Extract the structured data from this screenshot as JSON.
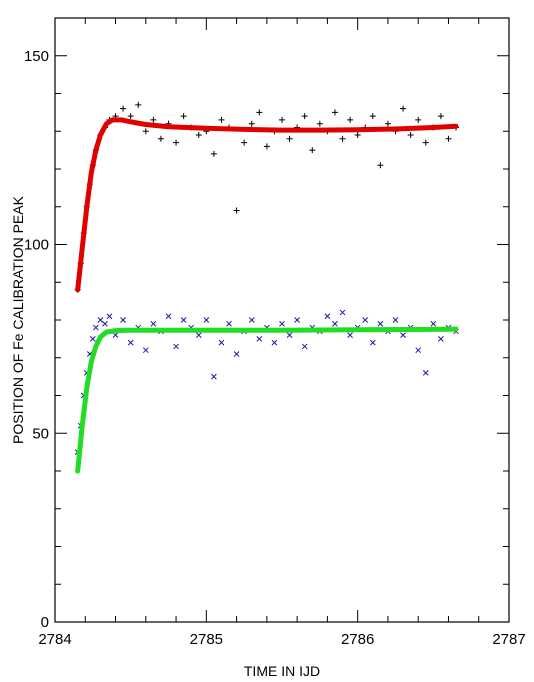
{
  "chart_data": {
    "type": "scatter",
    "xlabel": "TIME IN IJD",
    "ylabel": "POSITION OF Fe CALIBRATION PEAK",
    "xlim": [
      2784,
      2787
    ],
    "ylim": [
      0,
      160
    ],
    "x_ticks": [
      2784,
      2785,
      2786,
      2787
    ],
    "x_tick_labels": [
      "2784",
      "2785",
      "2786",
      "2787"
    ],
    "y_ticks": [
      0,
      50,
      100,
      150
    ],
    "y_tick_labels": [
      "0",
      "50",
      "100",
      "150"
    ],
    "grid": false,
    "legend": "none",
    "colors": {
      "upper_points": "#000000",
      "upper_fit": "#e00000",
      "lower_points": "#1a1aa8",
      "lower_fit": "#22dd22"
    },
    "series": [
      {
        "marker": "+",
        "color": "#000000",
        "description_range": "rises from about 88 at t=2784.15 to about 131 by t=2784.45, then scatters between roughly 110 and 140",
        "x": [
          2784.15,
          2784.17,
          2784.19,
          2784.21,
          2784.23,
          2784.25,
          2784.27,
          2784.3,
          2784.33,
          2784.36,
          2784.4,
          2784.45,
          2784.5,
          2784.55,
          2784.6,
          2784.65,
          2784.7,
          2784.75,
          2784.8,
          2784.85,
          2784.9,
          2784.95,
          2785.0,
          2785.05,
          2785.1,
          2785.15,
          2785.2,
          2785.25,
          2785.3,
          2785.35,
          2785.4,
          2785.45,
          2785.5,
          2785.55,
          2785.6,
          2785.65,
          2785.7,
          2785.75,
          2785.8,
          2785.85,
          2785.9,
          2785.95,
          2786.0,
          2786.05,
          2786.1,
          2786.15,
          2786.2,
          2786.25,
          2786.3,
          2786.35,
          2786.4,
          2786.45,
          2786.5,
          2786.55,
          2786.6,
          2786.65
        ],
        "y": [
          88,
          95,
          103,
          110,
          116,
          121,
          125,
          129,
          131,
          133,
          134,
          136,
          134,
          137,
          130,
          133,
          128,
          132,
          127,
          134,
          131,
          129,
          130,
          124,
          133,
          131,
          109,
          127,
          132,
          135,
          126,
          130,
          133,
          128,
          131,
          134,
          125,
          132,
          130,
          135,
          128,
          133,
          129,
          131,
          134,
          121,
          132,
          130,
          136,
          129,
          133,
          127,
          131,
          134,
          128,
          131
        ]
      },
      {
        "marker": "line",
        "color": "#e00000",
        "x": [
          2784.15,
          2784.18,
          2784.21,
          2784.24,
          2784.27,
          2784.3,
          2784.34,
          2784.38,
          2784.44,
          2784.5,
          2784.6,
          2784.75,
          2785.0,
          2785.25,
          2785.5,
          2785.75,
          2786.0,
          2786.25,
          2786.5,
          2786.65
        ],
        "y": [
          88,
          99,
          110,
          119,
          125,
          129,
          132,
          133,
          133,
          132.5,
          131.8,
          131.2,
          130.8,
          130.5,
          130.3,
          130.3,
          130.4,
          130.6,
          131,
          131.3
        ]
      },
      {
        "marker": "x",
        "color": "#1a1aa8",
        "x": [
          2784.15,
          2784.17,
          2784.19,
          2784.21,
          2784.23,
          2784.25,
          2784.27,
          2784.3,
          2784.33,
          2784.36,
          2784.4,
          2784.45,
          2784.5,
          2784.55,
          2784.6,
          2784.65,
          2784.7,
          2784.75,
          2784.8,
          2784.85,
          2784.9,
          2784.95,
          2785.0,
          2785.05,
          2785.1,
          2785.15,
          2785.2,
          2785.25,
          2785.3,
          2785.35,
          2785.4,
          2785.45,
          2785.5,
          2785.55,
          2785.6,
          2785.65,
          2785.7,
          2785.75,
          2785.8,
          2785.85,
          2785.9,
          2785.95,
          2786.0,
          2786.05,
          2786.1,
          2786.15,
          2786.2,
          2786.25,
          2786.3,
          2786.35,
          2786.4,
          2786.45,
          2786.5,
          2786.55,
          2786.6,
          2786.65
        ],
        "y": [
          45,
          52,
          60,
          66,
          71,
          75,
          78,
          80,
          79,
          81,
          76,
          80,
          74,
          78,
          72,
          79,
          77,
          81,
          73,
          80,
          78,
          76,
          80,
          65,
          74,
          79,
          71,
          77,
          80,
          75,
          78,
          74,
          79,
          76,
          80,
          73,
          78,
          77,
          81,
          79,
          82,
          76,
          78,
          80,
          74,
          79,
          77,
          80,
          76,
          78,
          72,
          66,
          79,
          75,
          78,
          77
        ]
      },
      {
        "marker": "line",
        "color": "#22dd22",
        "x": [
          2784.15,
          2784.18,
          2784.21,
          2784.24,
          2784.27,
          2784.3,
          2784.34,
          2784.4,
          2784.5,
          2784.75,
          2785.0,
          2785.5,
          2786.0,
          2786.5,
          2786.65
        ],
        "y": [
          40,
          52,
          62,
          69,
          73,
          75.5,
          76.8,
          77.2,
          77.3,
          77.3,
          77.3,
          77.3,
          77.4,
          77.5,
          77.6
        ]
      }
    ]
  }
}
